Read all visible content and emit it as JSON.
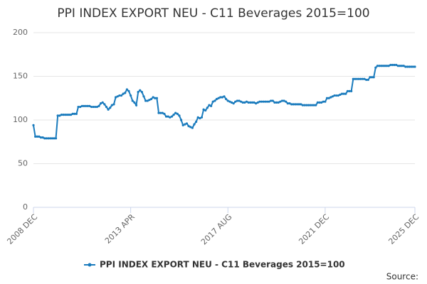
{
  "chart_data": {
    "type": "line",
    "title": "PPI INDEX EXPORT NEU - C11 Beverages 2015=100",
    "categories": [
      "2008 DEC",
      null,
      null,
      null,
      null,
      null,
      null,
      null,
      null,
      null,
      null,
      null,
      null,
      null,
      null,
      null,
      null,
      null,
      null,
      null,
      null,
      null,
      null,
      null,
      null,
      null,
      null,
      null,
      null,
      null,
      null,
      null,
      null,
      null,
      null,
      null,
      null,
      null,
      null,
      null,
      null,
      null,
      null,
      null,
      null,
      null,
      null,
      null,
      null,
      null,
      null,
      null,
      "2013 APR",
      null,
      null,
      null,
      null,
      null,
      null,
      null,
      null,
      null,
      null,
      null,
      null,
      null,
      null,
      null,
      null,
      null,
      null,
      null,
      null,
      null,
      null,
      null,
      null,
      null,
      null,
      null,
      null,
      null,
      null,
      null,
      null,
      null,
      null,
      null,
      null,
      null,
      null,
      null,
      null,
      null,
      null,
      null,
      null,
      null,
      null,
      null,
      null,
      null,
      null,
      null,
      "2017 AUG",
      null,
      null,
      null,
      null,
      null,
      null,
      null,
      null,
      null,
      null,
      null,
      null,
      null,
      null,
      null,
      null,
      null,
      null,
      null,
      null,
      null,
      null,
      null,
      null,
      null,
      null,
      null,
      null,
      null,
      null,
      null,
      null,
      null,
      null,
      null,
      null,
      null,
      null,
      null,
      null,
      null,
      null,
      null,
      null,
      null,
      null,
      null,
      null,
      null,
      null,
      null,
      "2021 DEC",
      null,
      null,
      null,
      null,
      null,
      null,
      null,
      null,
      null,
      null,
      null,
      null,
      null,
      null,
      null,
      null,
      null,
      null,
      null,
      null,
      null,
      null,
      null,
      null,
      null,
      null,
      null,
      null,
      null,
      null,
      null,
      null,
      null,
      null,
      null,
      null,
      null,
      null,
      null,
      null,
      null,
      null,
      null,
      null,
      null,
      null,
      null,
      "2025 DEC"
    ],
    "series": [
      {
        "name": "PPI INDEX EXPORT NEU - C11 Beverages 2015=100",
        "color": "#1a7bbd",
        "values": [
          94,
          81,
          81,
          81,
          80,
          80,
          79,
          79,
          79,
          79,
          79,
          79,
          79,
          105,
          105,
          106,
          106,
          106,
          106,
          106,
          106,
          107,
          107,
          107,
          115,
          115,
          116,
          116,
          116,
          116,
          116,
          115,
          115,
          115,
          115,
          116,
          119,
          120,
          118,
          115,
          112,
          114,
          117,
          118,
          126,
          127,
          128,
          128,
          130,
          131,
          135,
          133,
          128,
          122,
          120,
          117,
          132,
          134,
          132,
          127,
          122,
          122,
          123,
          124,
          126,
          125,
          125,
          108,
          108,
          108,
          107,
          104,
          104,
          103,
          104,
          106,
          108,
          107,
          105,
          100,
          94,
          95,
          96,
          93,
          92,
          91,
          95,
          98,
          103,
          102,
          103,
          112,
          111,
          114,
          117,
          116,
          121,
          122,
          124,
          125,
          126,
          126,
          127,
          124,
          122,
          121,
          120,
          119,
          121,
          122,
          122,
          121,
          120,
          120,
          121,
          120,
          120,
          120,
          120,
          119,
          120,
          121,
          121,
          121,
          121,
          121,
          121,
          122,
          122,
          120,
          120,
          120,
          121,
          122,
          122,
          121,
          119,
          119,
          118,
          118,
          118,
          118,
          118,
          118,
          117,
          117,
          117,
          117,
          117,
          117,
          117,
          117,
          120,
          120,
          120,
          121,
          121,
          125,
          125,
          126,
          127,
          128,
          128,
          128,
          129,
          130,
          130,
          130,
          133,
          133,
          133,
          147,
          147,
          147,
          147,
          147,
          147,
          147,
          146,
          146,
          149,
          149,
          149,
          160,
          162,
          162,
          162,
          162,
          162,
          162,
          162,
          163,
          163,
          163,
          163,
          162,
          162,
          162,
          162,
          161,
          161,
          161,
          161,
          161,
          161
        ]
      }
    ],
    "ylim": [
      0,
      200
    ],
    "yticks": [
      0,
      50,
      100,
      150,
      200
    ],
    "grid": true,
    "legend": "bottom",
    "source": "Source:"
  }
}
